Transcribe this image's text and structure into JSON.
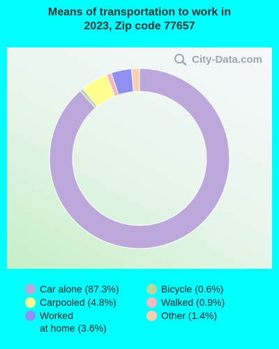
{
  "title": "Means of transportation to work in\n2023, Zip code 77657",
  "watermark": "City-Data.com",
  "chart_data": {
    "type": "pie",
    "style": "donut",
    "title": "Means of transportation to work in 2023, Zip code 77657",
    "slices": [
      {
        "name": "Car alone",
        "value": 87.3,
        "color": "#bca8da",
        "legend": "Car alone (87.3%)"
      },
      {
        "name": "Bicycle",
        "value": 0.6,
        "color": "#b9d9a0",
        "legend": "Bicycle (0.6%)"
      },
      {
        "name": "Carpooled",
        "value": 4.8,
        "color": "#ffff90",
        "legend": "Carpooled (4.8%)"
      },
      {
        "name": "Walked",
        "value": 0.9,
        "color": "#f4b8c0",
        "legend": "Walked (0.9%)"
      },
      {
        "name": "Worked at home",
        "value": 3.6,
        "color": "#9090f0",
        "legend": "Worked\nat home (3.6%)"
      },
      {
        "name": "Other",
        "value": 1.4,
        "color": "#f8d0b0",
        "legend": "Other (1.4%)"
      }
    ]
  }
}
